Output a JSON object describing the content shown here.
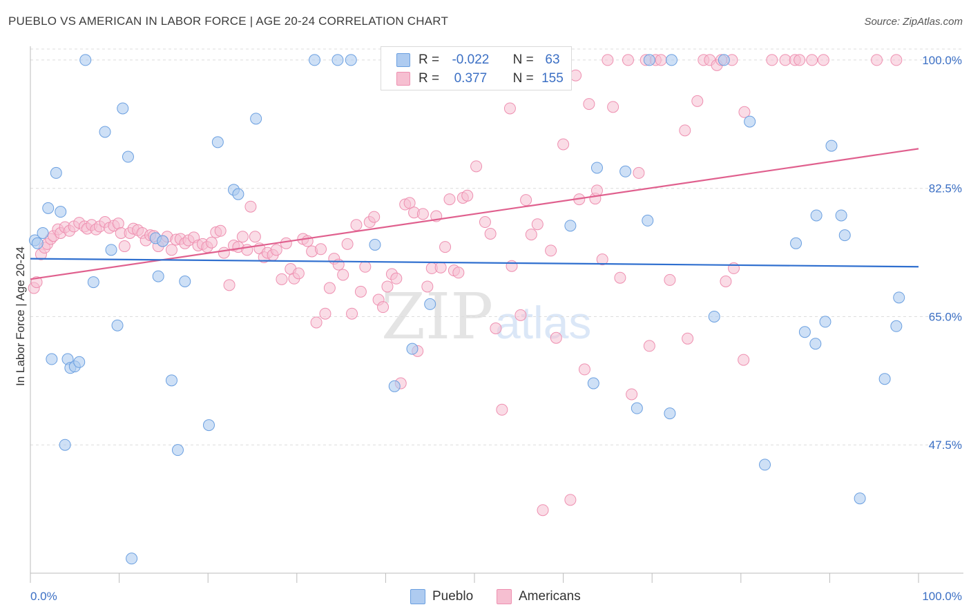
{
  "title": "PUEBLO VS AMERICAN IN LABOR FORCE | AGE 20-24 CORRELATION CHART",
  "source": "Source: ZipAtlas.com",
  "watermark": {
    "zip": "ZIP",
    "atlas": "atlas"
  },
  "colors": {
    "blue_fill": "#aecbf0",
    "blue_stroke": "#6a9fe0",
    "blue_line": "#2f6fcf",
    "pink_fill": "#f6bfd1",
    "pink_stroke": "#ee8fb0",
    "pink_line": "#e0608e",
    "axis_label": "#3b6fc4",
    "grid": "#dcdcdc"
  },
  "legend": {
    "rows": [
      {
        "r_label": "R =",
        "r_value": "-0.022",
        "n_label": "N =",
        "n_value": "63"
      },
      {
        "r_label": "R =",
        "r_value": "0.377",
        "n_label": "N =",
        "n_value": "155"
      }
    ]
  },
  "bottom_legend": {
    "pueblo": "Pueblo",
    "americans": "Americans"
  },
  "chart_data": {
    "type": "scatter",
    "title": "PUEBLO VS AMERICAN IN LABOR FORCE | AGE 20-24 CORRELATION CHART",
    "xlabel": "",
    "ylabel": "In Labor Force | Age 20-24",
    "xlim": [
      0,
      100
    ],
    "ylim": [
      30,
      101.5
    ],
    "x_tick_labels": [
      "0.0%",
      "100.0%"
    ],
    "y_ticks": [
      47.5,
      65.0,
      82.5,
      100.0
    ],
    "y_tick_labels": [
      "47.5%",
      "65.0%",
      "82.5%",
      "100.0%"
    ],
    "series": [
      {
        "name": "Pueblo",
        "r": -0.022,
        "n": 63,
        "trend": {
          "x": [
            0,
            100
          ],
          "y": [
            72.9,
            71.8
          ]
        },
        "points": [
          [
            0.5,
            75.4
          ],
          [
            0.8,
            75.0
          ],
          [
            1.4,
            76.4
          ],
          [
            2,
            79.8
          ],
          [
            2.4,
            59.2
          ],
          [
            2.9,
            84.6
          ],
          [
            3.4,
            79.3
          ],
          [
            3.9,
            47.5
          ],
          [
            4.2,
            59.2
          ],
          [
            4.5,
            58.0
          ],
          [
            5.0,
            58.2
          ],
          [
            5.5,
            58.8
          ],
          [
            6.2,
            100
          ],
          [
            7.1,
            69.7
          ],
          [
            8.4,
            90.2
          ],
          [
            9.1,
            74.1
          ],
          [
            9.8,
            63.8
          ],
          [
            10.4,
            93.4
          ],
          [
            11.0,
            86.8
          ],
          [
            11.4,
            32.0
          ],
          [
            14.1,
            75.7
          ],
          [
            14.4,
            70.5
          ],
          [
            14.9,
            75.3
          ],
          [
            15.9,
            56.3
          ],
          [
            16.6,
            46.8
          ],
          [
            17.4,
            69.8
          ],
          [
            20.1,
            50.2
          ],
          [
            21.1,
            88.8
          ],
          [
            22.9,
            82.3
          ],
          [
            23.4,
            81.7
          ],
          [
            25.4,
            92.0
          ],
          [
            32.0,
            100
          ],
          [
            34.6,
            100
          ],
          [
            36.1,
            100
          ],
          [
            38.8,
            74.8
          ],
          [
            41.0,
            55.5
          ],
          [
            43.0,
            60.6
          ],
          [
            45.0,
            66.7
          ],
          [
            60.8,
            77.4
          ],
          [
            63.4,
            55.9
          ],
          [
            63.8,
            85.3
          ],
          [
            67.0,
            84.8
          ],
          [
            68.3,
            52.5
          ],
          [
            69.5,
            78.1
          ],
          [
            69.7,
            100
          ],
          [
            72.0,
            51.8
          ],
          [
            72.2,
            100
          ],
          [
            77.0,
            65.0
          ],
          [
            78.1,
            100
          ],
          [
            81.0,
            91.6
          ],
          [
            82.7,
            44.8
          ],
          [
            86.2,
            75.0
          ],
          [
            87.2,
            62.9
          ],
          [
            88.4,
            61.3
          ],
          [
            88.5,
            78.8
          ],
          [
            89.5,
            64.3
          ],
          [
            90.2,
            88.3
          ],
          [
            91.3,
            78.8
          ],
          [
            91.7,
            76.1
          ],
          [
            93.4,
            40.2
          ],
          [
            96.2,
            56.5
          ],
          [
            97.5,
            63.7
          ],
          [
            97.8,
            67.6
          ]
        ]
      },
      {
        "name": "Americans",
        "r": 0.377,
        "n": 155,
        "trend": {
          "x": [
            0,
            100
          ],
          "y": [
            70.1,
            87.9
          ]
        },
        "points": [
          [
            0.4,
            68.9
          ],
          [
            0.7,
            69.7
          ],
          [
            1.2,
            73.5
          ],
          [
            1.6,
            74.4
          ],
          [
            1.9,
            74.9
          ],
          [
            2.3,
            75.6
          ],
          [
            2.6,
            76.0
          ],
          [
            3.1,
            76.9
          ],
          [
            3.4,
            76.4
          ],
          [
            3.9,
            77.2
          ],
          [
            4.4,
            76.7
          ],
          [
            4.9,
            77.3
          ],
          [
            5.5,
            77.8
          ],
          [
            6.1,
            77.3
          ],
          [
            6.4,
            77.0
          ],
          [
            6.9,
            77.5
          ],
          [
            7.4,
            76.9
          ],
          [
            7.8,
            77.3
          ],
          [
            8.4,
            77.9
          ],
          [
            8.9,
            77.1
          ],
          [
            9.4,
            77.4
          ],
          [
            9.9,
            77.7
          ],
          [
            10.2,
            76.4
          ],
          [
            10.6,
            74.6
          ],
          [
            11.2,
            76.4
          ],
          [
            11.6,
            77.0
          ],
          [
            12.1,
            76.8
          ],
          [
            12.6,
            76.4
          ],
          [
            13.0,
            75.4
          ],
          [
            13.5,
            76.1
          ],
          [
            13.9,
            76.0
          ],
          [
            14.4,
            74.6
          ],
          [
            14.9,
            75.3
          ],
          [
            15.4,
            75.9
          ],
          [
            15.9,
            74.1
          ],
          [
            16.4,
            75.5
          ],
          [
            16.9,
            75.6
          ],
          [
            17.4,
            75.0
          ],
          [
            17.8,
            75.4
          ],
          [
            18.4,
            75.8
          ],
          [
            18.9,
            74.7
          ],
          [
            19.4,
            74.9
          ],
          [
            19.9,
            74.5
          ],
          [
            20.4,
            75.1
          ],
          [
            20.9,
            76.5
          ],
          [
            21.4,
            76.7
          ],
          [
            21.8,
            73.7
          ],
          [
            22.4,
            69.3
          ],
          [
            22.9,
            74.7
          ],
          [
            23.4,
            74.5
          ],
          [
            23.9,
            75.9
          ],
          [
            24.4,
            74.1
          ],
          [
            24.8,
            80.0
          ],
          [
            25.3,
            75.9
          ],
          [
            25.8,
            74.3
          ],
          [
            26.3,
            73.1
          ],
          [
            26.7,
            73.7
          ],
          [
            27.3,
            73.4
          ],
          [
            27.7,
            74.1
          ],
          [
            28.3,
            70.1
          ],
          [
            28.8,
            75.0
          ],
          [
            29.3,
            71.5
          ],
          [
            29.7,
            70.2
          ],
          [
            30.2,
            70.9
          ],
          [
            30.7,
            75.6
          ],
          [
            31.2,
            75.3
          ],
          [
            31.7,
            73.9
          ],
          [
            32.2,
            64.2
          ],
          [
            32.7,
            74.2
          ],
          [
            33.2,
            65.4
          ],
          [
            33.7,
            68.9
          ],
          [
            34.2,
            72.9
          ],
          [
            34.7,
            72.1
          ],
          [
            35.2,
            70.7
          ],
          [
            35.7,
            74.9
          ],
          [
            36.2,
            65.4
          ],
          [
            36.7,
            77.5
          ],
          [
            37.2,
            68.4
          ],
          [
            37.7,
            71.8
          ],
          [
            38.2,
            77.9
          ],
          [
            38.7,
            78.6
          ],
          [
            39.2,
            67.3
          ],
          [
            39.7,
            66.3
          ],
          [
            40.2,
            69.1
          ],
          [
            40.7,
            70.8
          ],
          [
            41.2,
            70.2
          ],
          [
            41.7,
            55.9
          ],
          [
            42.2,
            80.3
          ],
          [
            42.7,
            80.5
          ],
          [
            43.2,
            79.2
          ],
          [
            43.6,
            60.3
          ],
          [
            44.2,
            79.0
          ],
          [
            44.7,
            69.1
          ],
          [
            45.2,
            71.6
          ],
          [
            45.7,
            78.7
          ],
          [
            46.2,
            71.7
          ],
          [
            46.7,
            74.5
          ],
          [
            47.2,
            81.0
          ],
          [
            47.7,
            71.3
          ],
          [
            48.2,
            71.0
          ],
          [
            48.7,
            81.2
          ],
          [
            49.2,
            81.5
          ],
          [
            50.2,
            85.5
          ],
          [
            51.2,
            77.9
          ],
          [
            51.8,
            76.3
          ],
          [
            52.4,
            63.4
          ],
          [
            53.1,
            52.3
          ],
          [
            54.0,
            93.4
          ],
          [
            54.2,
            71.9
          ],
          [
            55.2,
            65.2
          ],
          [
            55.8,
            80.9
          ],
          [
            56.4,
            76.2
          ],
          [
            57.1,
            77.6
          ],
          [
            57.7,
            38.6
          ],
          [
            58.6,
            74.0
          ],
          [
            59.2,
            62.1
          ],
          [
            60.0,
            88.5
          ],
          [
            60.8,
            40.0
          ],
          [
            61.4,
            97.9
          ],
          [
            61.8,
            81.0
          ],
          [
            62.4,
            57.8
          ],
          [
            62.9,
            94.0
          ],
          [
            63.6,
            81.1
          ],
          [
            63.8,
            82.2
          ],
          [
            64.4,
            72.8
          ],
          [
            65.0,
            100
          ],
          [
            65.6,
            93.6
          ],
          [
            66.4,
            70.3
          ],
          [
            67.3,
            100
          ],
          [
            67.7,
            54.4
          ],
          [
            68.5,
            84.6
          ],
          [
            69.3,
            100
          ],
          [
            69.7,
            61.0
          ],
          [
            70.4,
            100
          ],
          [
            71.0,
            100
          ],
          [
            72.0,
            70.0
          ],
          [
            73.7,
            90.4
          ],
          [
            74.0,
            62.0
          ],
          [
            75.1,
            94.4
          ],
          [
            75.8,
            100
          ],
          [
            76.5,
            100
          ],
          [
            77.3,
            99.3
          ],
          [
            77.8,
            100
          ],
          [
            78.3,
            69.8
          ],
          [
            79.0,
            100
          ],
          [
            79.2,
            71.6
          ],
          [
            80.3,
            59.1
          ],
          [
            80.4,
            92.9
          ],
          [
            83.5,
            100
          ],
          [
            85.0,
            100
          ],
          [
            86.1,
            100
          ],
          [
            86.6,
            100
          ],
          [
            88.0,
            100
          ],
          [
            89.3,
            100
          ],
          [
            95.3,
            100
          ],
          [
            97.5,
            100
          ]
        ]
      }
    ]
  }
}
